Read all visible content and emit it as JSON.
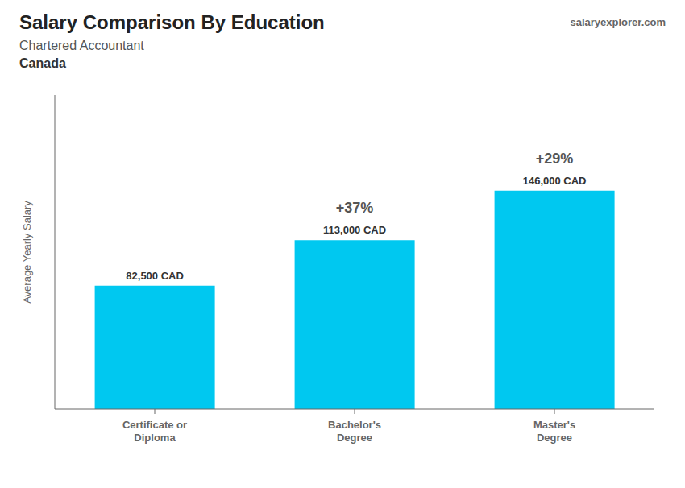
{
  "chart_data": {
    "type": "bar",
    "title": "Salary Comparison By Education",
    "subtitle": "Chartered Accountant",
    "country": "Canada",
    "watermark": "salaryexplorer.com",
    "categories": [
      "Certificate or\nDiploma",
      "Bachelor's\nDegree",
      "Master's\nDegree"
    ],
    "values": [
      82500,
      113000,
      146000
    ],
    "value_labels": [
      "82,500 CAD",
      "113,000 CAD",
      "146,000 CAD"
    ],
    "data_labels": true,
    "annotations": [
      "+37%",
      "+29%"
    ],
    "ylabel": "Average Yearly Salary",
    "ylim": [
      0,
      210000
    ],
    "tick_labels": "x",
    "grid": false,
    "color": "#00C8F0"
  }
}
